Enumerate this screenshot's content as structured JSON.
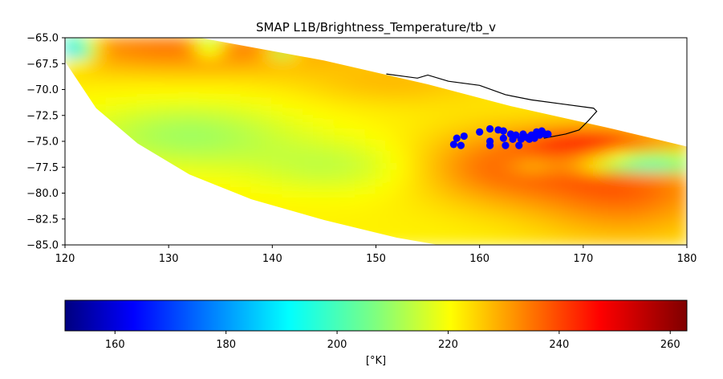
{
  "chart_data": {
    "type": "scatter",
    "title": "SMAP L1B/Brightness_Temperature/tb_v",
    "xlim": [
      120,
      180
    ],
    "ylim": [
      -85,
      -65
    ],
    "x_ticks": [
      120,
      130,
      140,
      150,
      160,
      170,
      180
    ],
    "x_tick_labels": [
      "120",
      "130",
      "140",
      "150",
      "160",
      "170",
      "180"
    ],
    "y_ticks": [
      -65,
      -67.5,
      -70,
      -72.5,
      -75,
      -77.5,
      -80,
      -82.5,
      -85
    ],
    "y_tick_labels": [
      "−65.0",
      "−67.5",
      "−70.0",
      "−72.5",
      "−75.0",
      "−77.5",
      "−80.0",
      "−82.5",
      "−85.0"
    ],
    "swath": {
      "upper_edge": [
        [
          120,
          -65
        ],
        [
          133,
          -65
        ],
        [
          145,
          -67.2
        ],
        [
          155,
          -69.5
        ],
        [
          163,
          -71.6
        ],
        [
          172,
          -73.6
        ],
        [
          180,
          -75.5
        ]
      ],
      "lower_edge": [
        [
          120,
          -67.3
        ],
        [
          123,
          -71.8
        ],
        [
          127,
          -75.2
        ],
        [
          132,
          -78.2
        ],
        [
          138,
          -80.6
        ],
        [
          145,
          -82.6
        ],
        [
          152,
          -84.3
        ],
        [
          156,
          -85
        ]
      ],
      "value_range": [
        150,
        263
      ]
    },
    "coastline": [
      [
        151,
        -68.5
      ],
      [
        154,
        -68.9
      ],
      [
        155,
        -68.6
      ],
      [
        157,
        -69.2
      ],
      [
        160,
        -69.6
      ],
      [
        162.5,
        -70.5
      ],
      [
        165,
        -71.0
      ],
      [
        168,
        -71.4
      ],
      [
        171,
        -71.8
      ],
      [
        171.3,
        -72.1
      ],
      [
        170.5,
        -73.0
      ],
      [
        169.6,
        -73.9
      ],
      [
        168.3,
        -74.3
      ],
      [
        166.2,
        -74.7
      ]
    ],
    "blue_points": [
      [
        157.5,
        -75.3
      ],
      [
        157.8,
        -74.7
      ],
      [
        158.2,
        -75.4
      ],
      [
        158.5,
        -74.5
      ],
      [
        160,
        -74.1
      ],
      [
        161,
        -73.8
      ],
      [
        161,
        -75.0
      ],
      [
        161,
        -75.4
      ],
      [
        161.8,
        -73.9
      ],
      [
        162.3,
        -74.0
      ],
      [
        162.3,
        -74.7
      ],
      [
        162.5,
        -75.4
      ],
      [
        163,
        -74.3
      ],
      [
        163.2,
        -74.8
      ],
      [
        163.5,
        -74.4
      ],
      [
        163.8,
        -75.4
      ],
      [
        164,
        -74.8
      ],
      [
        164.2,
        -74.3
      ],
      [
        164.5,
        -74.6
      ],
      [
        164.8,
        -74.8
      ],
      [
        165,
        -74.4
      ],
      [
        165.3,
        -74.7
      ],
      [
        165.5,
        -74.1
      ],
      [
        165.8,
        -74.4
      ],
      [
        166,
        -74.0
      ],
      [
        166.3,
        -74.3
      ],
      [
        166.6,
        -74.3
      ]
    ],
    "colorbar": {
      "label": "[°K]",
      "vmin": 151,
      "vmax": 263,
      "ticks": [
        160,
        180,
        200,
        220,
        240,
        260
      ],
      "tick_labels": [
        "160",
        "180",
        "200",
        "220",
        "240",
        "260"
      ],
      "colormap": "jet"
    }
  }
}
